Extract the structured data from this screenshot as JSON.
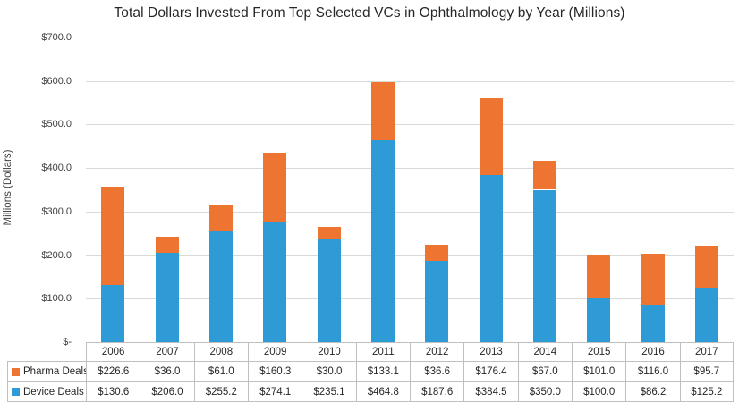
{
  "chart_data": {
    "type": "bar",
    "stacked": true,
    "title": "Total Dollars Invested From Top Selected VCs in Ophthalmology by Year (Millions)",
    "ylabel": "Millions (Dollars)",
    "xlabel": "",
    "ylim": [
      0,
      700
    ],
    "ytick_step": 100,
    "ytick_labels_top_to_bottom": [
      "$700.0",
      "$600.0",
      "$500.0",
      "$400.0",
      "$300.0",
      "$200.0",
      "$100.0",
      "$-"
    ],
    "grid": "horizontal",
    "legend_position": "data-table-left",
    "categories": [
      "2006",
      "2007",
      "2008",
      "2009",
      "2010",
      "2011",
      "2012",
      "2013",
      "2014",
      "2015",
      "2016",
      "2017"
    ],
    "series": [
      {
        "name": "Pharma Deals",
        "color": "#ed7431",
        "stack_order": "top",
        "values": [
          226.6,
          36.0,
          61.0,
          160.3,
          30.0,
          133.1,
          36.6,
          176.4,
          67.0,
          101.0,
          116.0,
          95.7
        ],
        "labels": [
          "$226.6",
          "$36.0",
          "$61.0",
          "$160.3",
          "$30.0",
          "$133.1",
          "$36.6",
          "$176.4",
          "$67.0",
          "$101.0",
          "$116.0",
          "$95.7"
        ]
      },
      {
        "name": "Device Deals",
        "color": "#2e9bd6",
        "stack_order": "bottom",
        "values": [
          130.6,
          206.0,
          255.2,
          274.1,
          235.1,
          464.8,
          187.6,
          384.5,
          350.0,
          100.0,
          86.2,
          125.2
        ],
        "labels": [
          "$130.6",
          "$206.0",
          "$255.2",
          "$274.1",
          "$235.1",
          "$464.8",
          "$187.6",
          "$384.5",
          "$350.0",
          "$100.0",
          "$86.2",
          "$125.2"
        ]
      }
    ]
  },
  "colors": {
    "pharma": "#ed7431",
    "device": "#2e9bd6",
    "gridline": "#d9d9d9",
    "table_border": "#bfbfbf",
    "title_text": "#262626",
    "axis_text": "#3f3f3f"
  }
}
